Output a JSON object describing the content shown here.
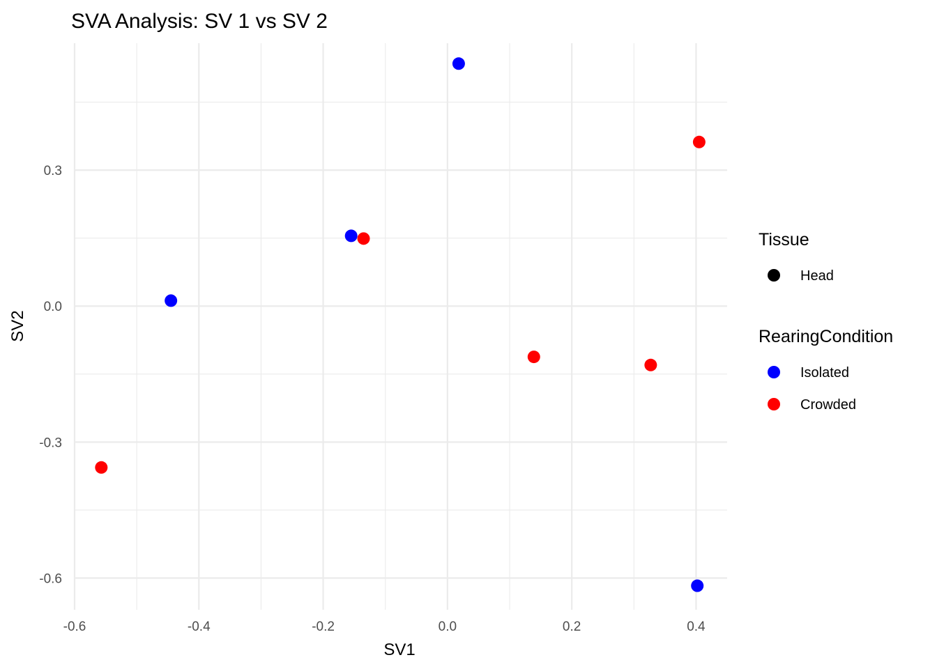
{
  "chart_data": {
    "type": "scatter",
    "title": "SVA Analysis: SV 1  vs SV 2",
    "xlabel": "SV1",
    "ylabel": "SV2",
    "xlim": [
      -0.6,
      0.45
    ],
    "ylim": [
      -0.67,
      0.58
    ],
    "x_ticks": [
      -0.6,
      -0.4,
      -0.2,
      0.0,
      0.2,
      0.4
    ],
    "x_tick_labels": [
      "-0.6",
      "-0.4",
      "-0.2",
      "0.0",
      "0.2",
      "0.4"
    ],
    "y_ticks": [
      -0.6,
      -0.3,
      0.0,
      0.3
    ],
    "y_tick_labels": [
      "-0.6",
      "-0.3",
      "0.0",
      "0.3"
    ],
    "x_minor_ticks": [
      -0.5,
      -0.3,
      -0.1,
      0.1,
      0.3
    ],
    "y_minor_ticks": [
      -0.45,
      -0.15,
      0.15,
      0.45
    ],
    "grid": true,
    "legend_position": "right",
    "legends": [
      {
        "title": "Tissue",
        "entries": [
          {
            "label": "Head",
            "color": "#000000"
          }
        ]
      },
      {
        "title": "RearingCondition",
        "entries": [
          {
            "label": "Isolated",
            "color": "#0000ff"
          },
          {
            "label": "Crowded",
            "color": "#ff0000"
          }
        ]
      }
    ],
    "series": [
      {
        "name": "Isolated",
        "color": "#0000ff",
        "points": [
          {
            "x": 0.018,
            "y": 0.535
          },
          {
            "x": -0.155,
            "y": 0.155
          },
          {
            "x": -0.445,
            "y": 0.012
          },
          {
            "x": 0.402,
            "y": -0.617
          }
        ]
      },
      {
        "name": "Crowded",
        "color": "#ff0000",
        "points": [
          {
            "x": 0.405,
            "y": 0.362
          },
          {
            "x": -0.135,
            "y": 0.149
          },
          {
            "x": 0.139,
            "y": -0.112
          },
          {
            "x": 0.327,
            "y": -0.13
          },
          {
            "x": -0.557,
            "y": -0.356
          }
        ]
      }
    ]
  }
}
